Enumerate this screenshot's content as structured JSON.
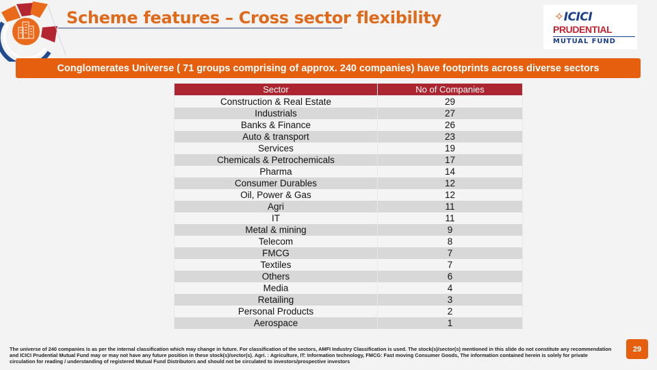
{
  "header": {
    "title": "Scheme features – Cross sector flexibility"
  },
  "brand": {
    "line1_mark": "♀",
    "line1": "ICICI",
    "line2": "PRUDENTIAL",
    "line3": "MUTUAL FUND"
  },
  "banner": {
    "text": "Conglomerates Universe ( 71 groups comprising of approx. 240 companies) have footprints across diverse sectors"
  },
  "table": {
    "headers": [
      "Sector",
      "No of Companies"
    ],
    "rows": [
      {
        "sector": "Construction & Real Estate",
        "count": "29"
      },
      {
        "sector": "Industrials",
        "count": "27"
      },
      {
        "sector": "Banks & Finance",
        "count": "26"
      },
      {
        "sector": "Auto & transport",
        "count": "23"
      },
      {
        "sector": "Services",
        "count": "19"
      },
      {
        "sector": "Chemicals & Petrochemicals",
        "count": "17"
      },
      {
        "sector": "Pharma",
        "count": "14"
      },
      {
        "sector": "Consumer Durables",
        "count": "12"
      },
      {
        "sector": "Oil, Power & Gas",
        "count": "12"
      },
      {
        "sector": "Agri",
        "count": "11"
      },
      {
        "sector": "IT",
        "count": "11"
      },
      {
        "sector": "Metal & mining",
        "count": "9"
      },
      {
        "sector": "Telecom",
        "count": "8"
      },
      {
        "sector": "FMCG",
        "count": "7"
      },
      {
        "sector": "Textiles",
        "count": "7"
      },
      {
        "sector": "Others",
        "count": "6"
      },
      {
        "sector": "Media",
        "count": "4"
      },
      {
        "sector": "Retailing",
        "count": "3"
      },
      {
        "sector": "Personal Products",
        "count": "2"
      },
      {
        "sector": "Aerospace",
        "count": "1"
      }
    ]
  },
  "footer": {
    "disclaimer": "The universe of 240 companies is as per the internal classification which may change in future. For classification of the sectors, AMFI Industry Classification is used. The stock(s)/sector(s) mentioned in this slide do not constitute any recommendation and ICICI Prudential Mutual Fund may or may not have any future  position in these stock(s)/sector(s). Agri. : Agriculture, IT: Information technology, FMCG: Fast moving Consumer Goods, The information contained herein is solely for private circulation for reading / understanding of registered Mutual Fund Distributors and should not be circulated to investors/prospective investors",
    "page_number": "29"
  },
  "colors": {
    "accent_orange": "#e55f0f",
    "title_orange": "#e06a1b",
    "table_header_red": "#ab2630",
    "brand_blue": "#1a3e8c",
    "brand_red": "#c8202f"
  }
}
